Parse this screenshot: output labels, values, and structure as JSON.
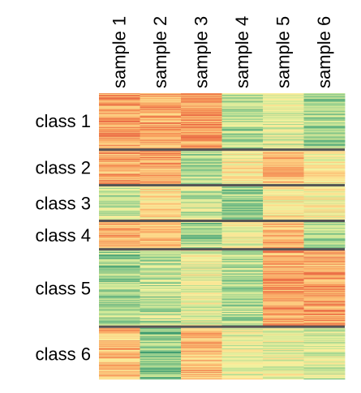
{
  "chart_data": {
    "type": "heatmap",
    "columns": [
      "sample 1",
      "sample 2",
      "sample 3",
      "sample 4",
      "sample 5",
      "sample 6"
    ],
    "row_groups": [
      {
        "label": "class 1",
        "rows": 70,
        "levels": [
          0.82,
          0.8,
          0.85,
          0.3,
          0.45,
          0.25
        ]
      },
      {
        "label": "class 2",
        "rows": 42,
        "levels": [
          0.78,
          0.82,
          0.28,
          0.55,
          0.72,
          0.55
        ]
      },
      {
        "label": "class 3",
        "rows": 42,
        "levels": [
          0.35,
          0.6,
          0.38,
          0.25,
          0.58,
          0.55
        ]
      },
      {
        "label": "class 4",
        "rows": 33,
        "levels": [
          0.75,
          0.7,
          0.28,
          0.48,
          0.75,
          0.3
        ]
      },
      {
        "label": "class 5",
        "rows": 95,
        "levels": [
          0.25,
          0.35,
          0.45,
          0.3,
          0.8,
          0.82
        ]
      },
      {
        "label": "class 6",
        "rows": 65,
        "levels": [
          0.72,
          0.2,
          0.75,
          0.45,
          0.45,
          0.4
        ]
      }
    ],
    "value_range": [
      0,
      1
    ],
    "color_scale": [
      "#3c9a6f",
      "#7fc38a",
      "#c8e697",
      "#f8f2a0",
      "#fdd587",
      "#f9a25f",
      "#ea6b45"
    ],
    "separator_color": "#555555",
    "legend": "none"
  }
}
